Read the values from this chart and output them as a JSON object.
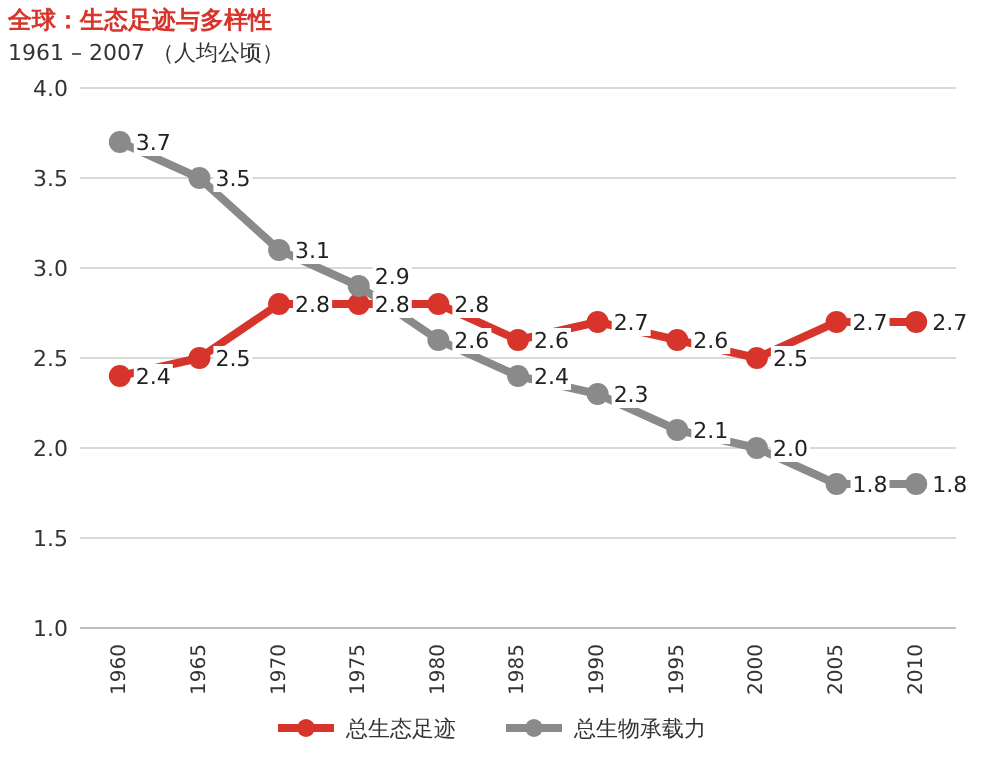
{
  "chart_data": {
    "type": "line",
    "title": "全球：生态足迹与多样性",
    "subtitle": "1961 – 2007 （人均公顷）",
    "categories": [
      "1960",
      "1965",
      "1970",
      "1975",
      "1980",
      "1985",
      "1990",
      "1995",
      "2000",
      "2005",
      "2010"
    ],
    "series": [
      {
        "name": "总生态足迹",
        "color": "#d7352b",
        "values": [
          2.4,
          2.5,
          2.8,
          2.8,
          2.8,
          2.6,
          2.7,
          2.6,
          2.5,
          2.7,
          2.7
        ],
        "value_labels": [
          "2.4",
          "2.5",
          "2.8",
          "2.8",
          "2.8",
          "2.6",
          "2.7",
          "2.6",
          "2.5",
          "2.7",
          "2.7"
        ]
      },
      {
        "name": "总生物承载力",
        "color": "#8a8a8a",
        "values": [
          3.7,
          3.5,
          3.1,
          2.9,
          2.6,
          2.4,
          2.3,
          2.1,
          2.0,
          1.8,
          1.8
        ],
        "value_labels": [
          "3.7",
          "3.5",
          "3.1",
          "2.9",
          "2.6",
          "2.4",
          "2.3",
          "2.1",
          "2.0",
          "1.8",
          "1.8"
        ]
      }
    ],
    "ylim": [
      1.0,
      4.0
    ],
    "yticks": [
      {
        "value": 1.0,
        "label": "1.0"
      },
      {
        "value": 1.5,
        "label": "1.5"
      },
      {
        "value": 2.0,
        "label": "2.0"
      },
      {
        "value": 2.5,
        "label": "2.5"
      },
      {
        "value": 3.0,
        "label": "3.0"
      },
      {
        "value": 3.5,
        "label": "3.5"
      },
      {
        "value": 4.0,
        "label": "4.0"
      }
    ],
    "grid": "y",
    "legend": "bottom",
    "marker": "circle",
    "line_style": "solid"
  }
}
